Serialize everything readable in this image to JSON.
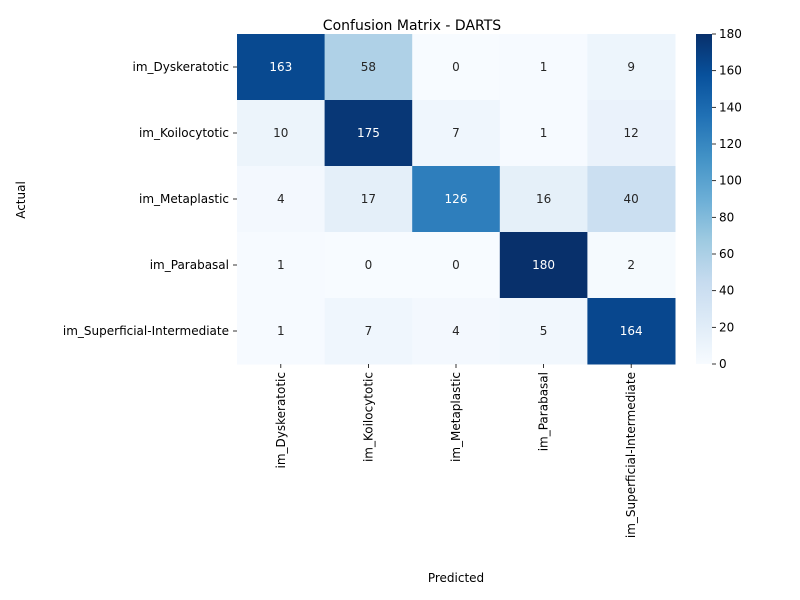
{
  "chart_data": {
    "type": "heatmap",
    "title": "Confusion Matrix - DARTS",
    "xlabel": "Predicted",
    "ylabel": "Actual",
    "x_categories": [
      "im_Dyskeratotic",
      "im_Koilocytotic",
      "im_Metaplastic",
      "im_Parabasal",
      "im_Superficial-Intermediate"
    ],
    "y_categories": [
      "im_Dyskeratotic",
      "im_Koilocytotic",
      "im_Metaplastic",
      "im_Parabasal",
      "im_Superficial-Intermediate"
    ],
    "values": [
      [
        163,
        58,
        0,
        1,
        9
      ],
      [
        10,
        175,
        7,
        1,
        12
      ],
      [
        4,
        17,
        126,
        16,
        40
      ],
      [
        1,
        0,
        0,
        180,
        2
      ],
      [
        1,
        7,
        4,
        5,
        164
      ]
    ],
    "colormap": "Blues",
    "colorbar": {
      "min": 0,
      "max": 180,
      "ticks": [
        0,
        20,
        40,
        60,
        80,
        100,
        120,
        140,
        160,
        180
      ]
    },
    "grid": false
  }
}
